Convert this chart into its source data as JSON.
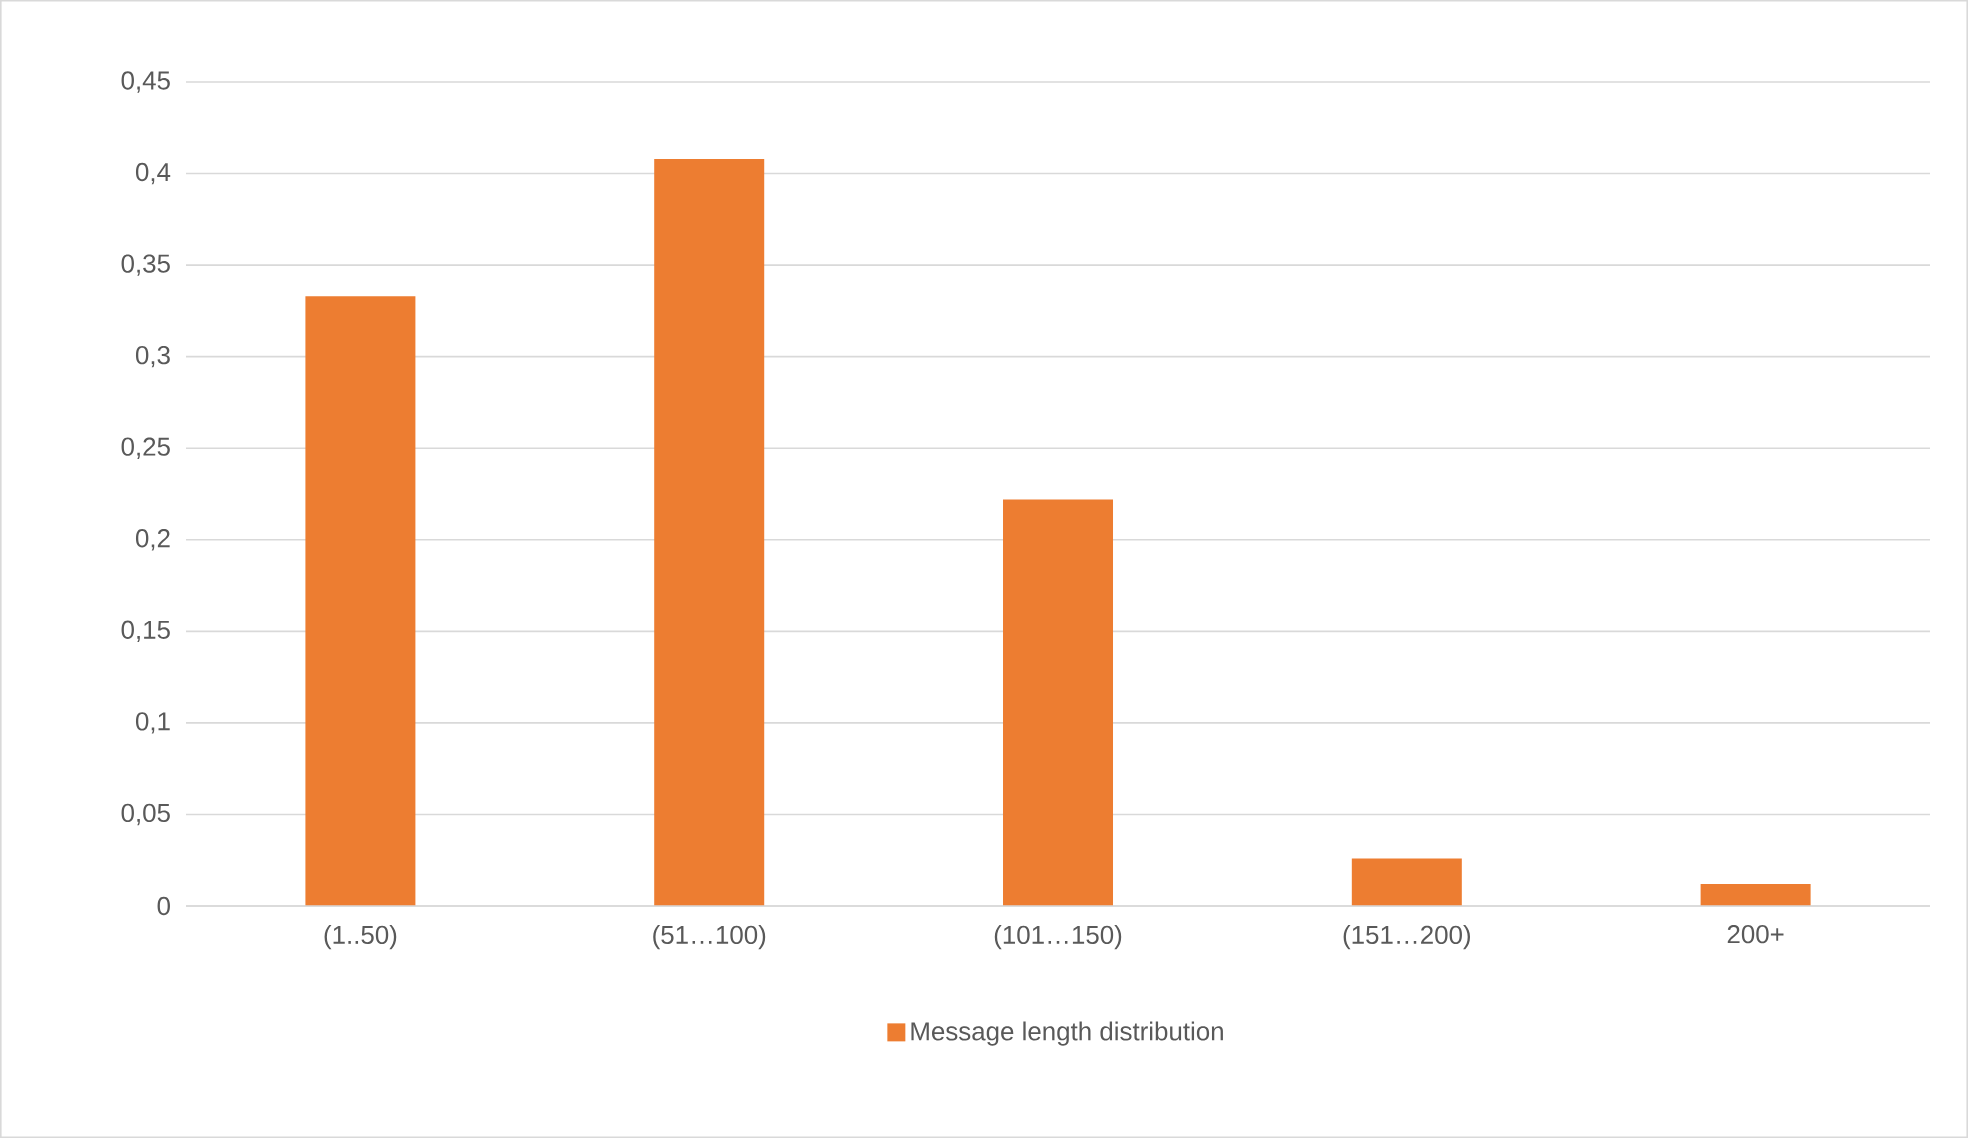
{
  "chart_data": {
    "type": "bar",
    "categories": [
      "(1..50)",
      "(51…100)",
      "(101…150)",
      "(151…200)",
      "200+"
    ],
    "series": [
      {
        "name": "Message length distribution",
        "color": "#ed7d31",
        "values": [
          0.333,
          0.408,
          0.222,
          0.026,
          0.012
        ]
      }
    ],
    "ylim": [
      0,
      0.45
    ],
    "yticks": [
      0,
      {
        "value": 0.05,
        "label": "0,05"
      },
      {
        "value": 0.1,
        "label": "0,1"
      },
      {
        "value": 0.15,
        "label": "0,15"
      },
      {
        "value": 0.2,
        "label": "0,2"
      },
      {
        "value": 0.25,
        "label": "0,25"
      },
      {
        "value": 0.3,
        "label": "0,3"
      },
      {
        "value": 0.35,
        "label": "0,35"
      },
      {
        "value": 0.4,
        "label": "0,4"
      },
      {
        "value": 0.45,
        "label": "0,45"
      }
    ],
    "grid": "y",
    "legend": "bottom"
  }
}
